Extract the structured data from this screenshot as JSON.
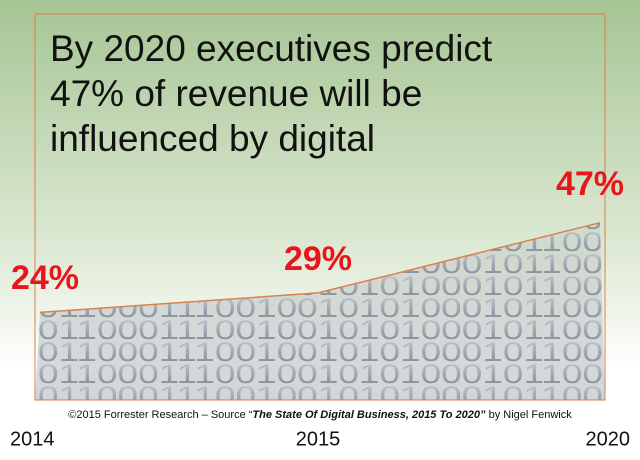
{
  "chart_data": {
    "type": "line",
    "title": "By 2020 executives predict 47% of revenue will be influenced by digital",
    "source": {
      "prefix": "©2015 Forrester Research – Source “",
      "work": "The State Of Digital Business, 2015 To 2020”",
      "suffix": " by Nigel Fenwick"
    },
    "background_digits": "0110001110010010101000101100",
    "categories": [
      "2014",
      "2015",
      "2020"
    ],
    "values": [
      24,
      29,
      47
    ],
    "value_labels": [
      "24%",
      "29%",
      "47%"
    ],
    "color": "#d9804f",
    "label_color": "#e8161b"
  }
}
